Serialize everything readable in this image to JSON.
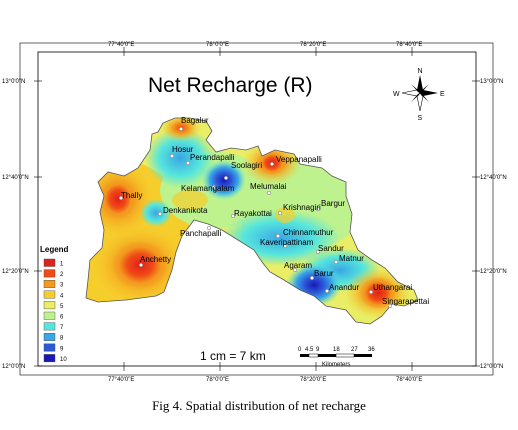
{
  "map": {
    "title": "Net Recharge (R)",
    "scale_text": "1 cm = 7 km",
    "scale_bar": {
      "ticks": [
        "0",
        "4.5",
        "9",
        "18",
        "27",
        "36"
      ],
      "unit": "Kilometers"
    },
    "north_arrow": {
      "n": "N",
      "s": "S",
      "e": "E",
      "w": "W"
    },
    "top_coords": [
      "77°40'0\"E",
      "78°0'0\"E",
      "78°20'0\"E",
      "78°40'0\"E"
    ],
    "bottom_coords": [
      "77°40'0\"E",
      "78°0'0\"E",
      "78°20'0\"E",
      "78°40'0\"E"
    ],
    "left_coords": [
      "13°0'0\"N",
      "12°40'0\"N",
      "12°20'0\"N",
      "12°0'0\"N"
    ],
    "right_coords": [
      "13°0'0\"N",
      "12°40'0\"N",
      "12°20'0\"N",
      "12°0'0\"N"
    ],
    "towns": [
      "Bagalur",
      "Hosur",
      "Perandapalli",
      "Soolagiri",
      "Veppanapalli",
      "Kelamangalam",
      "Melumalai",
      "Thally",
      "Denkanikota",
      "Rayakottai",
      "Krishnagiri",
      "Bargur",
      "Panchapalli",
      "Chinnamuthur",
      "Kaveripattinam",
      "Sandur",
      "Matnur",
      "Agaram",
      "Barur",
      "Anandur",
      "Uthangarai",
      "Singarapettai",
      "Anchetty"
    ]
  },
  "legend": {
    "title": "Legend",
    "items": [
      {
        "label": "1",
        "color": "#e0201a"
      },
      {
        "label": "2",
        "color": "#f04a16"
      },
      {
        "label": "3",
        "color": "#f39a1e"
      },
      {
        "label": "4",
        "color": "#f6ce2c"
      },
      {
        "label": "5",
        "color": "#e9ee66"
      },
      {
        "label": "6",
        "color": "#bdf28e"
      },
      {
        "label": "7",
        "color": "#56e6dc"
      },
      {
        "label": "8",
        "color": "#3aa6e6"
      },
      {
        "label": "9",
        "color": "#2c58d8"
      },
      {
        "label": "10",
        "color": "#1818b8"
      }
    ]
  },
  "caption": "Fig 4. Spatial distribution of net recharge"
}
